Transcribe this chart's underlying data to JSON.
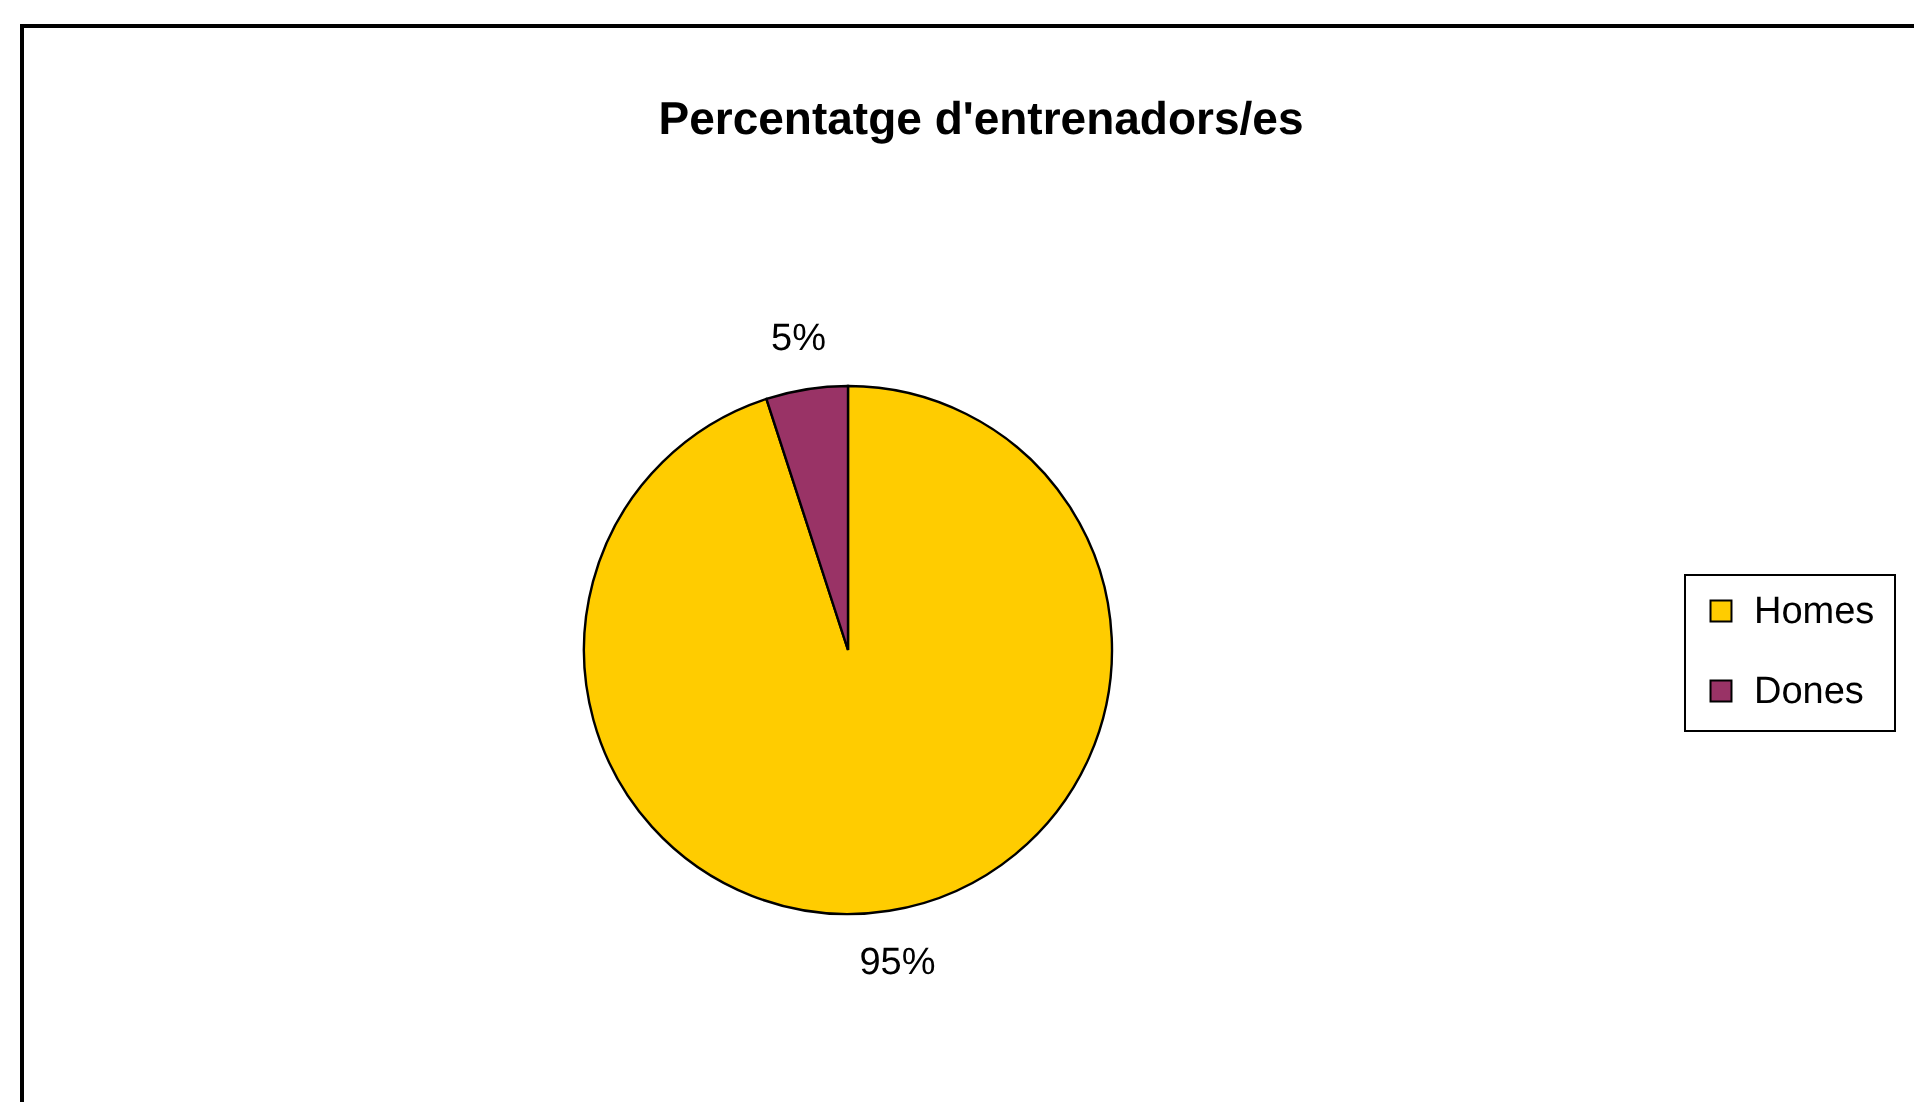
{
  "chart_data": {
    "type": "pie",
    "title": "Percentatge d'entrenadors/es",
    "categories": [
      "Homes",
      "Dones"
    ],
    "values": [
      95,
      5
    ],
    "colors": [
      "#ffcc00",
      "#993366"
    ],
    "value_labels": [
      "95%",
      "5%"
    ],
    "legend": "right"
  }
}
